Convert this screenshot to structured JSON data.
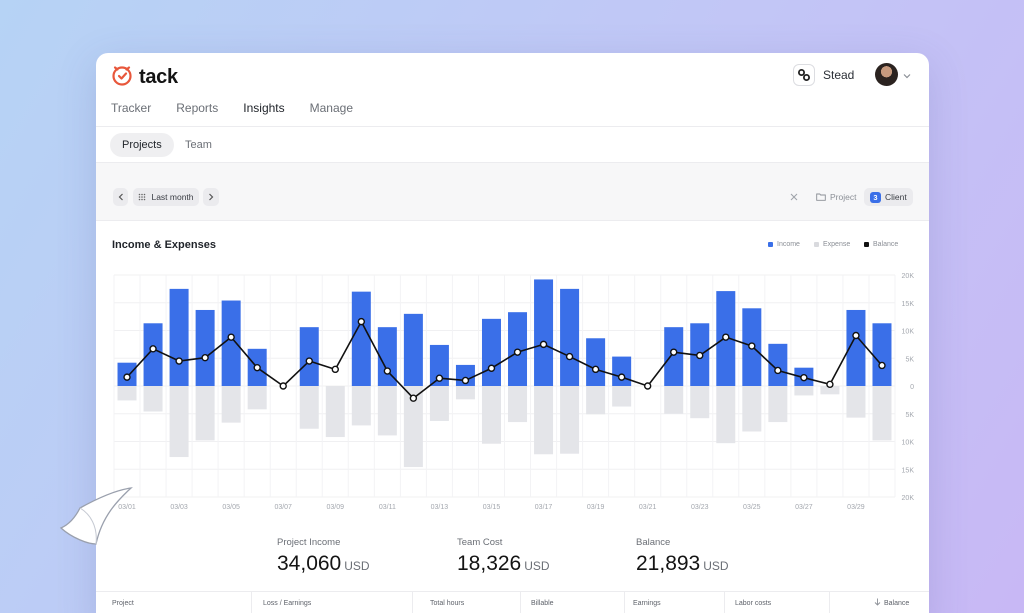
{
  "app": {
    "name": "tack"
  },
  "nav": {
    "items": [
      "Tracker",
      "Reports",
      "Insights",
      "Manage"
    ],
    "active": "Insights"
  },
  "workspace": {
    "name": "Stead"
  },
  "subnav": {
    "tabs": [
      "Projects",
      "Team"
    ],
    "active": "Projects"
  },
  "filters": {
    "period": "Last month",
    "project_label": "Project",
    "client_label": "Client",
    "client_count": "3"
  },
  "chart_data": {
    "type": "bar",
    "title": "Income & Expenses",
    "legend": [
      "Income",
      "Expense",
      "Balance"
    ],
    "legend_position": "top-right",
    "grid": true,
    "colors": {
      "income": "#3a6fe8",
      "expense": "#e4e5e9",
      "balance": "#111111"
    },
    "x": [
      "03/01",
      "03/02",
      "03/03",
      "03/04",
      "03/05",
      "03/06",
      "03/07",
      "03/08",
      "03/09",
      "03/10",
      "03/11",
      "03/12",
      "03/13",
      "03/14",
      "03/15",
      "03/16",
      "03/17",
      "03/18",
      "03/19",
      "03/20",
      "03/21",
      "03/22",
      "03/23",
      "03/24",
      "03/25",
      "03/26",
      "03/27",
      "03/28",
      "03/29",
      "03/30"
    ],
    "x_tick_labels": [
      "03/01",
      "03/03",
      "03/05",
      "03/07",
      "03/09",
      "03/11",
      "03/13",
      "03/15",
      "03/17",
      "03/19",
      "03/21",
      "03/23",
      "03/25",
      "03/27",
      "03/29"
    ],
    "y_tick_labels": [
      "20K",
      "15K",
      "10K",
      "5K",
      "0",
      "5K",
      "10K",
      "15K",
      "20K"
    ],
    "ylim": [
      -20000,
      20000
    ],
    "series": [
      {
        "name": "Income",
        "values": [
          4200,
          11300,
          17500,
          13700,
          15400,
          6700,
          0,
          10600,
          0,
          17000,
          10600,
          13000,
          7400,
          3800,
          12100,
          13300,
          19200,
          17500,
          8600,
          5300,
          0,
          10600,
          11300,
          17100,
          14000,
          7600,
          3300,
          0,
          13700,
          11300
        ]
      },
      {
        "name": "Expense",
        "values": [
          -2600,
          -4600,
          -12800,
          -9800,
          -6600,
          -4200,
          0,
          -7700,
          -9200,
          -7100,
          -8900,
          -14600,
          -6300,
          -2400,
          -10400,
          -6500,
          -12300,
          -12200,
          -5100,
          -3700,
          0,
          -5000,
          -5800,
          -10300,
          -8200,
          -6500,
          -1700,
          -1500,
          -5700,
          -9800
        ]
      },
      {
        "name": "Balance",
        "values": [
          1600,
          6700,
          4500,
          5100,
          8800,
          3300,
          0,
          4500,
          3000,
          11600,
          2700,
          -2200,
          1400,
          1000,
          3200,
          6100,
          7500,
          5300,
          3000,
          1600,
          0,
          6100,
          5500,
          8800,
          7200,
          2800,
          1500,
          300,
          9100,
          3700
        ]
      }
    ]
  },
  "stats": [
    {
      "label": "Project Income",
      "value": "34,060",
      "unit": "USD"
    },
    {
      "label": "Team Cost",
      "value": "18,326",
      "unit": "USD"
    },
    {
      "label": "Balance",
      "value": "21,893",
      "unit": "USD"
    }
  ],
  "table": {
    "columns": [
      "Project",
      "Loss / Earnings",
      "Total hours",
      "Billable",
      "Earnings",
      "Labor costs",
      "Balance"
    ]
  },
  "icons": [
    "tack-logo-icon",
    "workspace-icon",
    "chevron-down-icon",
    "chevron-left-icon",
    "chevron-right-icon",
    "grid-dots-icon",
    "close-icon",
    "folder-icon",
    "sort-down-icon"
  ]
}
